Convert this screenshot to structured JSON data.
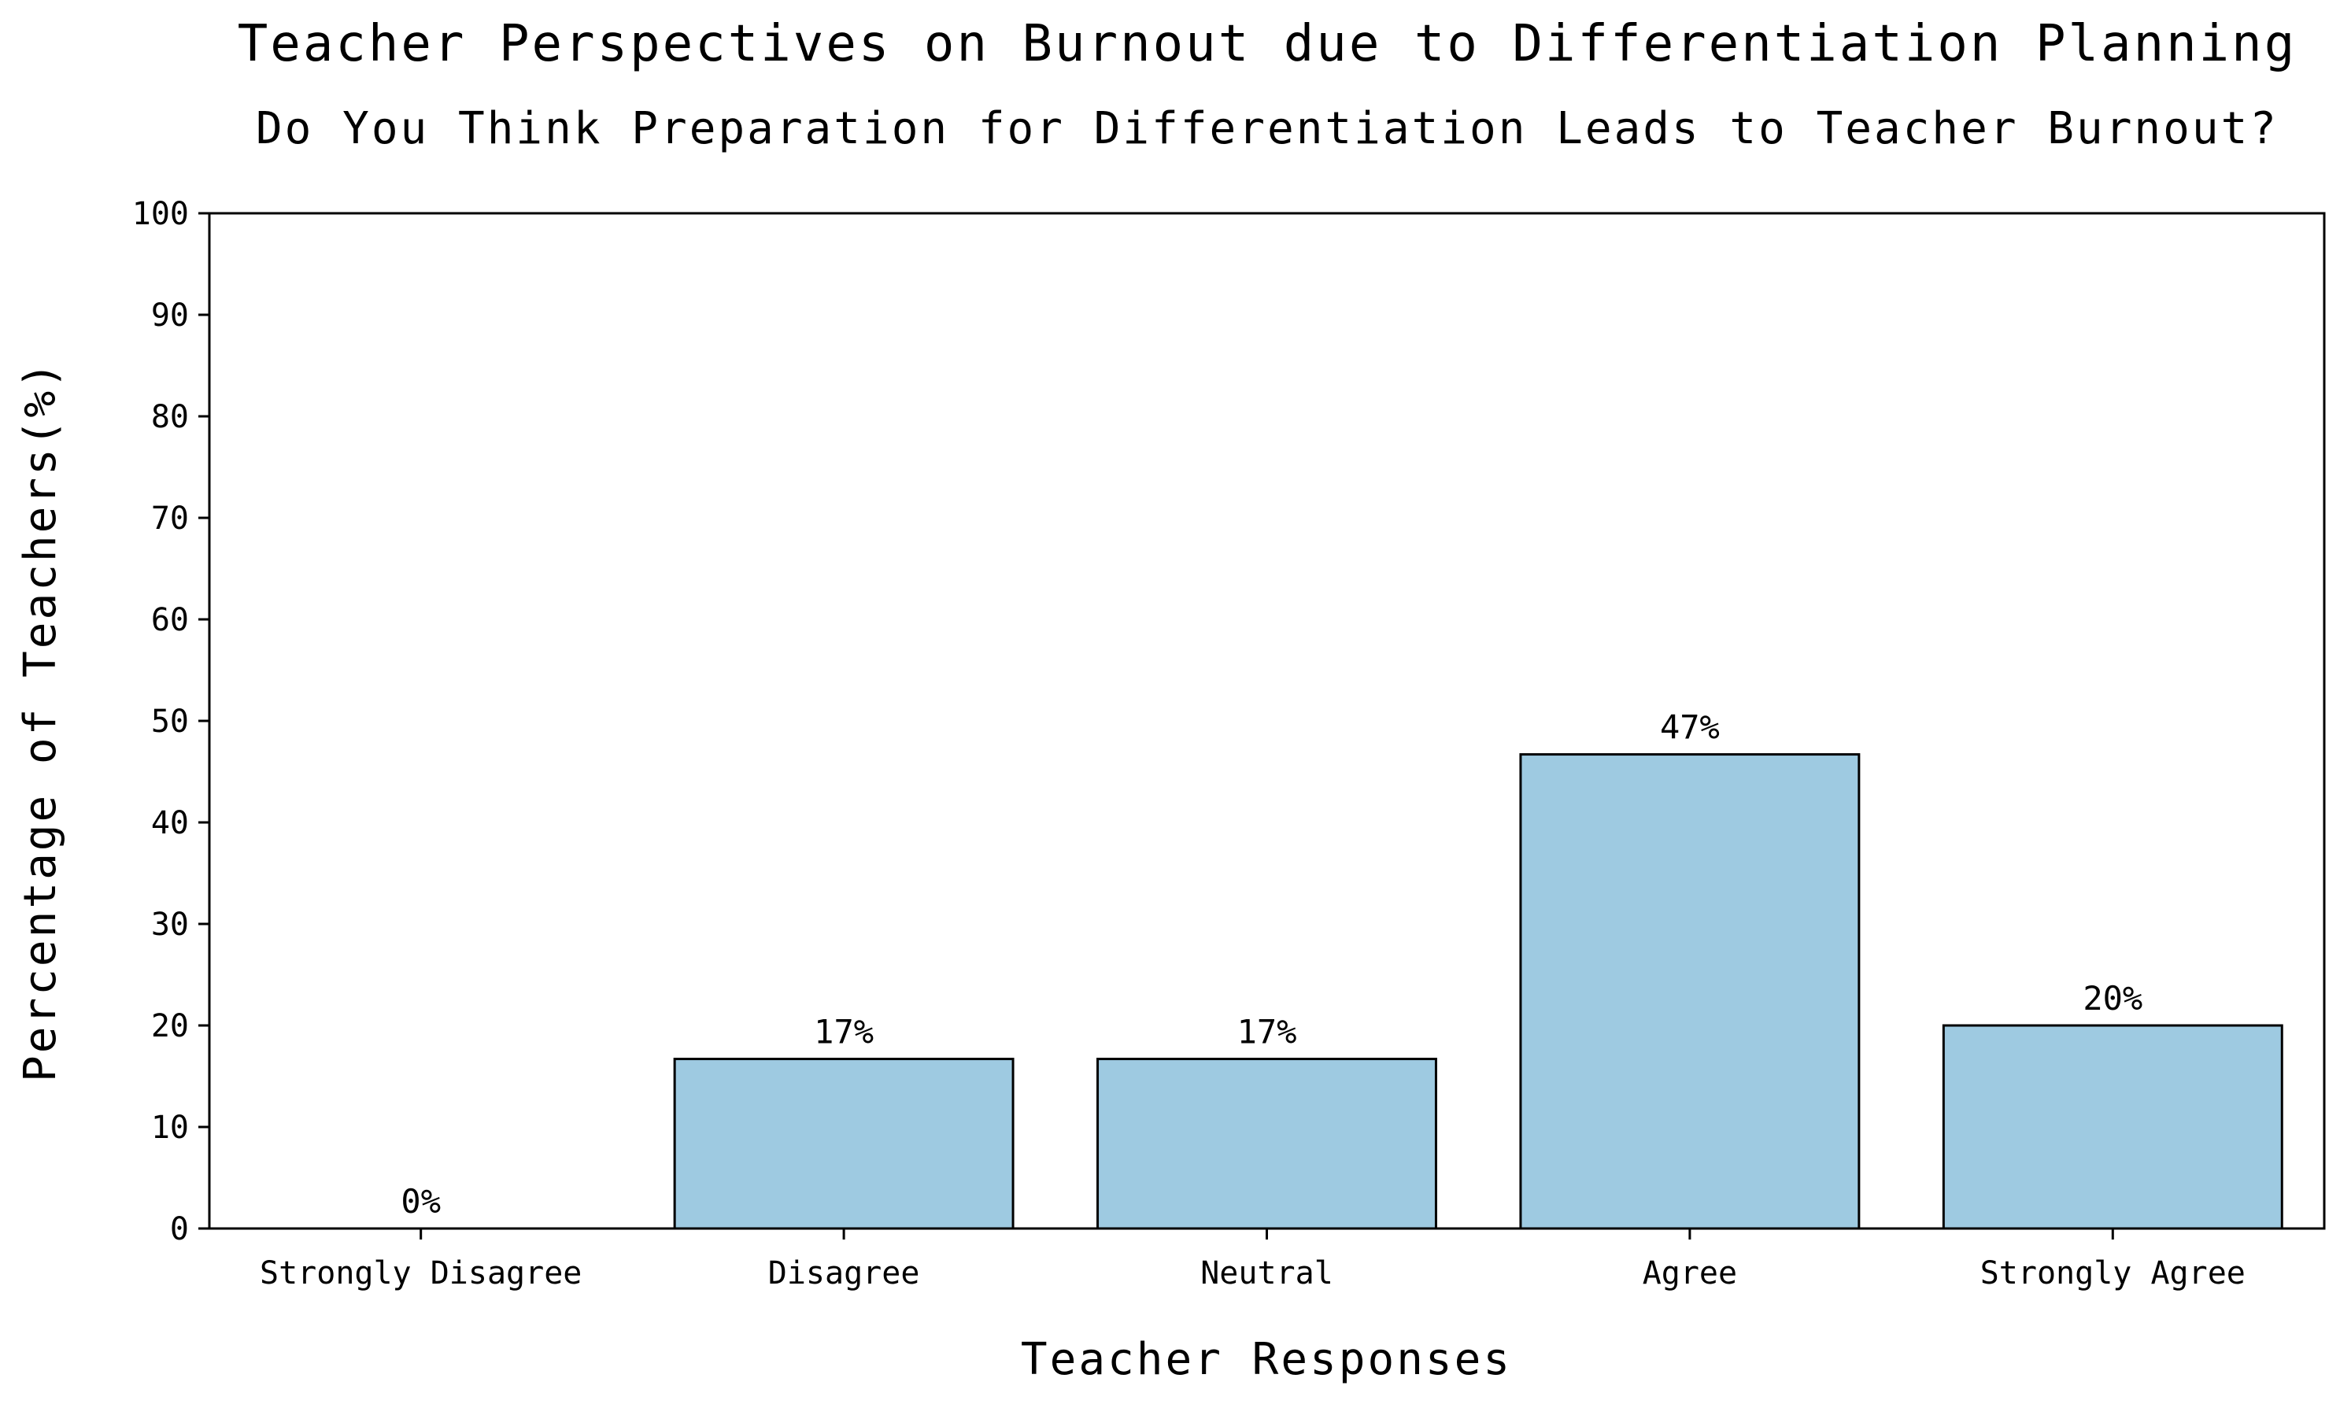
{
  "chart_data": {
    "type": "bar",
    "title": "Teacher Perspectives on Burnout due to Differentiation Planning",
    "subtitle": "Do You Think Preparation for Differentiation Leads to Teacher Burnout?",
    "xlabel": "Teacher Responses",
    "ylabel": "Percentage of Teachers(%)",
    "categories": [
      "Strongly Disagree",
      "Disagree",
      "Neutral",
      "Agree",
      "Strongly Agree"
    ],
    "values": [
      0,
      16.7,
      16.7,
      46.7,
      20
    ],
    "data_labels": [
      "0%",
      "17%",
      "17%",
      "47%",
      "20%"
    ],
    "ylim": [
      0,
      100
    ],
    "yticks": [
      "0",
      "10",
      "20",
      "30",
      "40",
      "50",
      "60",
      "70",
      "80",
      "90",
      "100"
    ],
    "grid": false,
    "legend": "none",
    "colors": {
      "bar_fill": "#9ecae1",
      "bar_edge": "#000000",
      "axis": "#000000",
      "text": "#000000"
    }
  }
}
